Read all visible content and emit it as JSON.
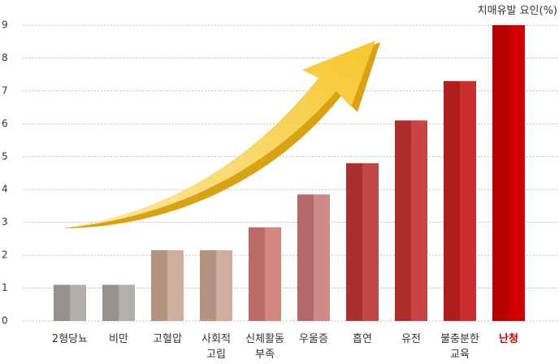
{
  "chart_data": {
    "type": "bar",
    "title": "치매유발 요인(%)",
    "categories": [
      "2형당뇨",
      "비만",
      "고혈압",
      "사회적\n고립",
      "신체활동\n부족",
      "우울증",
      "흡연",
      "유전",
      "불충분한\n교육",
      "난청"
    ],
    "values": [
      1.1,
      1.1,
      2.15,
      2.15,
      2.85,
      3.85,
      4.8,
      6.1,
      7.3,
      9
    ],
    "colors": [
      [
        "#96918c",
        "#b3aeaa"
      ],
      [
        "#96918c",
        "#b3aeaa"
      ],
      [
        "#b3927f",
        "#ceaf9f"
      ],
      [
        "#b3927f",
        "#ceaf9f"
      ],
      [
        "#b96c68",
        "#d3857f"
      ],
      [
        "#b5686a",
        "#cd8887"
      ],
      [
        "#a8302f",
        "#c14646"
      ],
      [
        "#ac2e2c",
        "#c84341"
      ],
      [
        "#b01e1e",
        "#cc2e2e"
      ],
      [
        "#b80000",
        "#d00000"
      ]
    ],
    "label_colors": [
      "#333",
      "#333",
      "#333",
      "#333",
      "#333",
      "#333",
      "#333",
      "#333",
      "#333",
      "#c00000"
    ],
    "ylim": [
      0,
      9
    ],
    "yticks": [
      0,
      1,
      2,
      3,
      4,
      5,
      6,
      7,
      8,
      9
    ],
    "grid": true
  }
}
